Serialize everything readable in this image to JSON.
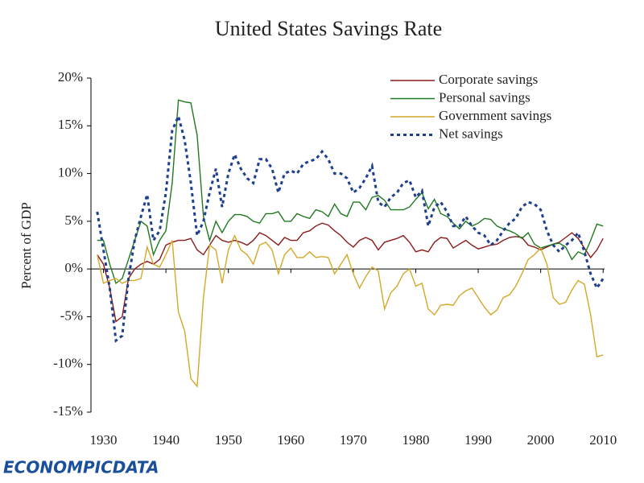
{
  "chart_data": {
    "type": "line",
    "title": "United States Savings Rate",
    "ylabel": "Percent of GDP",
    "x": [
      1929,
      1930,
      1931,
      1932,
      1933,
      1934,
      1935,
      1936,
      1937,
      1938,
      1939,
      1940,
      1941,
      1942,
      1943,
      1944,
      1945,
      1946,
      1947,
      1948,
      1949,
      1950,
      1951,
      1952,
      1953,
      1954,
      1955,
      1956,
      1957,
      1958,
      1959,
      1960,
      1961,
      1962,
      1963,
      1964,
      1965,
      1966,
      1967,
      1968,
      1969,
      1970,
      1971,
      1972,
      1973,
      1974,
      1975,
      1976,
      1977,
      1978,
      1979,
      1980,
      1981,
      1982,
      1983,
      1984,
      1985,
      1986,
      1987,
      1988,
      1989,
      1990,
      1991,
      1992,
      1993,
      1994,
      1995,
      1996,
      1997,
      1998,
      1999,
      2000,
      2001,
      2002,
      2003,
      2004,
      2005,
      2006,
      2007,
      2008,
      2009,
      2010
    ],
    "series": [
      {
        "name": "Corporate savings",
        "color": "#8b1a1a",
        "dash": false,
        "values": [
          1.5,
          0.5,
          -2,
          -5.5,
          -5,
          -1,
          0,
          0.5,
          0.8,
          0.5,
          1,
          2.5,
          2.8,
          3,
          3,
          3.2,
          2,
          1.5,
          2.5,
          3.5,
          3,
          2.8,
          3,
          2.8,
          2.5,
          3,
          3.8,
          3.5,
          3,
          2.5,
          3.3,
          3,
          3,
          3.8,
          4,
          4.5,
          4.8,
          4.6,
          4,
          3.5,
          2.8,
          2.3,
          3,
          3.3,
          3,
          2,
          2.8,
          3,
          3.2,
          3.5,
          2.8,
          1.8,
          2,
          1.8,
          2.8,
          3.3,
          3.2,
          2.2,
          2.6,
          3,
          2.5,
          2.1,
          2.3,
          2.5,
          2.6,
          3,
          3.3,
          3.4,
          3.3,
          2.5,
          2.3,
          2,
          2.3,
          2.6,
          2.8,
          3.3,
          3.8,
          3.2,
          2.2,
          1.2,
          2,
          3.2
        ]
      },
      {
        "name": "Personal savings",
        "color": "#1f7a1f",
        "dash": false,
        "values": [
          3,
          3,
          0.5,
          -1.5,
          -1,
          1,
          3,
          5,
          4.5,
          1.5,
          3,
          4,
          9,
          17.7,
          17.5,
          17.4,
          14,
          5.5,
          3,
          5,
          3.8,
          5,
          5.7,
          5.7,
          5.5,
          5,
          4.8,
          5.8,
          5.8,
          6,
          5,
          5,
          5.8,
          5.5,
          5.3,
          6.2,
          6,
          5.5,
          6.8,
          5.8,
          5.5,
          7,
          7,
          6.2,
          7.5,
          7.7,
          7.2,
          6.2,
          6.2,
          6.2,
          6.5,
          7.3,
          8,
          6.3,
          7.3,
          5.8,
          5.5,
          4.8,
          4.2,
          5,
          4.5,
          4.8,
          5.3,
          5.2,
          4.5,
          4.2,
          4,
          3.7,
          3.2,
          3.8,
          2.6,
          2.2,
          2.4,
          2.6,
          2.7,
          2.3,
          1,
          1.8,
          1.5,
          3,
          4.7,
          4.5
        ]
      },
      {
        "name": "Government savings",
        "color": "#d4a82a",
        "dash": false,
        "values": [
          1.5,
          -1.5,
          -1.2,
          -1,
          -1.5,
          -1.2,
          -1.2,
          -1,
          2.3,
          0.5,
          0.2,
          1.5,
          3,
          -4.5,
          -6.5,
          -11.5,
          -12.3,
          -3,
          2.5,
          2,
          -1.5,
          2,
          3.5,
          2,
          1.5,
          0.5,
          2.5,
          2.8,
          2,
          -0.5,
          1.5,
          2.2,
          1.2,
          1.2,
          1.8,
          1.2,
          1.3,
          1.2,
          -0.5,
          0.5,
          1.5,
          -0.5,
          -2,
          -0.8,
          0.2,
          -0.2,
          -4.2,
          -2.5,
          -1.8,
          -0.5,
          0,
          -1.8,
          -1.5,
          -4.2,
          -4.8,
          -3.8,
          -3.7,
          -3.8,
          -2.8,
          -2.3,
          -2,
          -3,
          -4,
          -4.8,
          -4.3,
          -3,
          -2.7,
          -1.8,
          -0.5,
          1,
          1.5,
          2.2,
          0.5,
          -3,
          -3.7,
          -3.5,
          -2.2,
          -1.2,
          -1.6,
          -4.8,
          -9.2,
          -9
        ]
      },
      {
        "name": "Net savings",
        "color": "#1f3f8f",
        "dash": true,
        "values": [
          6,
          2,
          -2,
          -7.5,
          -7,
          -1,
          3,
          5.5,
          7.8,
          3,
          4,
          8,
          14.5,
          16,
          13.5,
          9,
          3.5,
          5,
          8,
          10.5,
          6.5,
          10,
          12,
          10.5,
          9.5,
          9,
          11.5,
          11.5,
          10.5,
          8,
          10,
          10.3,
          10,
          11,
          11.3,
          11.5,
          12.3,
          11.5,
          10,
          10,
          9.5,
          8,
          8.5,
          9.5,
          10.8,
          7,
          6.5,
          7.5,
          8,
          9,
          9.3,
          7.5,
          8.2,
          4.5,
          6.5,
          7,
          6,
          4.5,
          4.5,
          5.5,
          4.5,
          3.8,
          3.5,
          2.5,
          3,
          4,
          4.8,
          5.3,
          6.5,
          7,
          6.8,
          6.2,
          4,
          2.5,
          1.8,
          2.5,
          3,
          3.8,
          1.8,
          -0.5,
          -2,
          -1
        ]
      }
    ],
    "xlim": [
      1928,
      2011
    ],
    "xticks": [
      1930,
      1940,
      1950,
      1960,
      1970,
      1980,
      1990,
      2000,
      2010
    ],
    "ylim": [
      -15,
      20
    ],
    "yticks": [
      {
        "value": -15,
        "label": "-15%"
      },
      {
        "value": -10,
        "label": "-10%"
      },
      {
        "value": -5,
        "label": "-5%"
      },
      {
        "value": 0,
        "label": "0%"
      },
      {
        "value": 5,
        "label": "5%"
      },
      {
        "value": 10,
        "label": "10%"
      },
      {
        "value": 15,
        "label": "15%"
      },
      {
        "value": 20,
        "label": "20%"
      }
    ],
    "legend": "top-right"
  },
  "logo": "ECONOMPICDATA"
}
